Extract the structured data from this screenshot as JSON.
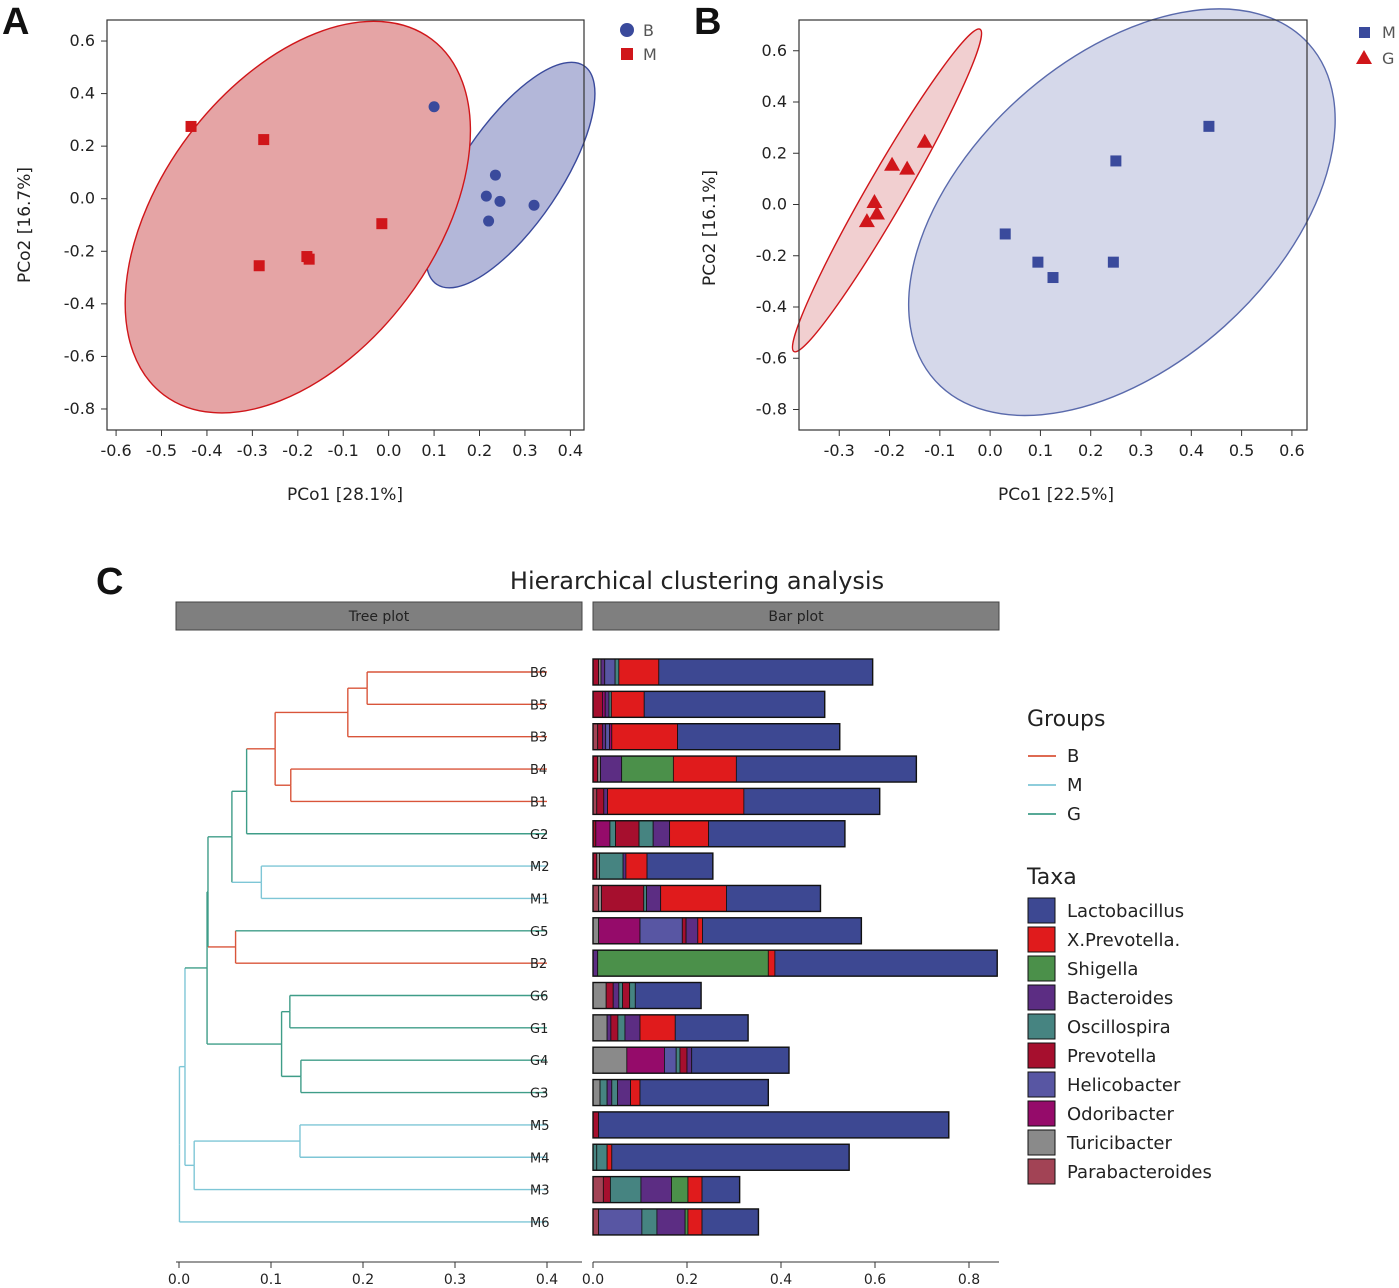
{
  "panels": {
    "A": {
      "letter": "A"
    },
    "B": {
      "letter": "B"
    },
    "C": {
      "letter": "C"
    }
  },
  "chart_data": [
    {
      "type": "scatter",
      "panel": "A",
      "xlabel": "PCo1 [28.1%]",
      "ylabel": "PCo2 [16.7%]",
      "xlim": [
        -0.62,
        0.43
      ],
      "ylim": [
        -0.88,
        0.68
      ],
      "xticks": [
        -0.6,
        -0.5,
        -0.4,
        -0.3,
        -0.2,
        -0.1,
        0.0,
        0.1,
        0.2,
        0.3,
        0.4
      ],
      "yticks": [
        0.6,
        0.4,
        0.2,
        0.0,
        -0.2,
        -0.4,
        -0.6,
        -0.8
      ],
      "xtick_labels": [
        "-0.6",
        "-0.5",
        "-0.4",
        "-0.3",
        "-0.2",
        "-0.1",
        "0.0",
        "0.1",
        "0.2",
        "0.3",
        "0.4"
      ],
      "ytick_labels": [
        "0.6",
        "0.4",
        "0.2",
        "0.0",
        "-0.2",
        "-0.4",
        "-0.6",
        "-0.8"
      ],
      "series": [
        {
          "name": "B",
          "marker": "circle",
          "color": "#3a4a9c",
          "fill": "#b3b7d9",
          "stroke": "#3a4a9c",
          "points": [
            [
              0.1,
              0.35
            ],
            [
              0.235,
              0.09
            ],
            [
              0.215,
              0.01
            ],
            [
              0.245,
              -0.01
            ],
            [
              0.32,
              -0.025
            ],
            [
              0.22,
              -0.085
            ]
          ],
          "ellipse": {
            "cx": 0.268,
            "cy": 0.09,
            "rx": 0.29,
            "ry": 0.11,
            "angle_deg": -56
          }
        },
        {
          "name": "M",
          "marker": "square",
          "color": "#d0161a",
          "fill": "#e5a4a5",
          "stroke": "#d0161a",
          "points": [
            [
              -0.435,
              0.275
            ],
            [
              -0.275,
              0.225
            ],
            [
              -0.015,
              -0.095
            ],
            [
              -0.18,
              -0.22
            ],
            [
              -0.175,
              -0.23
            ],
            [
              -0.285,
              -0.255
            ]
          ],
          "ellipse": {
            "cx": -0.2,
            "cy": -0.07,
            "rx": 0.49,
            "ry": 0.3,
            "angle_deg": -53
          }
        }
      ]
    },
    {
      "type": "scatter",
      "panel": "B",
      "xlabel": "PCo1 [22.5%]",
      "ylabel": "PCo2 [16.1%]",
      "xlim": [
        -0.38,
        0.63
      ],
      "ylim": [
        -0.88,
        0.72
      ],
      "xticks": [
        -0.3,
        -0.2,
        -0.1,
        0.0,
        0.1,
        0.2,
        0.3,
        0.4,
        0.5,
        0.6
      ],
      "yticks": [
        0.6,
        0.4,
        0.2,
        0.0,
        -0.2,
        -0.4,
        -0.6,
        -0.8
      ],
      "xtick_labels": [
        "-0.3",
        "-0.2",
        "-0.1",
        "0.0",
        "0.1",
        "0.2",
        "0.3",
        "0.4",
        "0.5",
        "0.6"
      ],
      "ytick_labels": [
        "0.6",
        "0.4",
        "0.2",
        "0.0",
        "-0.2",
        "-0.4",
        "-0.6",
        "-0.8"
      ],
      "series": [
        {
          "name": "M",
          "marker": "square",
          "color": "#3a4a9c",
          "fill": "#d5d8ea",
          "stroke": "#5a6aac",
          "points": [
            [
              0.435,
              0.305
            ],
            [
              0.25,
              0.17
            ],
            [
              0.03,
              -0.115
            ],
            [
              0.095,
              -0.225
            ],
            [
              0.125,
              -0.285
            ],
            [
              0.245,
              -0.225
            ]
          ],
          "ellipse": {
            "cx": 0.262,
            "cy": -0.03,
            "rx": 0.5,
            "ry": 0.305,
            "angle_deg": -42
          }
        },
        {
          "name": "G",
          "marker": "triangle",
          "color": "#d0161a",
          "fill": "#f1cfd0",
          "stroke": "#d0161a",
          "points": [
            [
              -0.13,
              0.245
            ],
            [
              -0.195,
              0.155
            ],
            [
              -0.165,
              0.14
            ],
            [
              -0.23,
              0.01
            ],
            [
              -0.225,
              -0.035
            ],
            [
              -0.245,
              -0.065
            ]
          ],
          "ellipse": {
            "cx": -0.205,
            "cy": 0.055,
            "rx": 0.37,
            "ry": 0.038,
            "angle_deg": -60
          }
        }
      ]
    },
    {
      "type": "bar",
      "panel": "C",
      "title": "Hierarchical clustering analysis",
      "strip_tree": "Tree plot",
      "strip_bar": "Bar plot",
      "orientation": "horizontal",
      "samples": [
        "B6",
        "B5",
        "B3",
        "B4",
        "B1",
        "G2",
        "M2",
        "M1",
        "G5",
        "B2",
        "G6",
        "G1",
        "G4",
        "G3",
        "M5",
        "M4",
        "M3",
        "M6"
      ],
      "leaf_group": [
        "B",
        "B",
        "B",
        "B",
        "B",
        "G",
        "M",
        "M",
        "G",
        "B",
        "G",
        "G",
        "G",
        "G",
        "M",
        "M",
        "M",
        "M"
      ],
      "tree_xticks": [
        0.0,
        0.1,
        0.2,
        0.3,
        0.4
      ],
      "tree_xtick_labels": [
        "0.0",
        "0.1",
        "0.2",
        "0.3",
        "0.4"
      ],
      "tree_xlim": [
        0.0,
        0.43
      ],
      "bar_xticks": [
        0.0,
        0.2,
        0.4,
        0.6,
        0.8
      ],
      "bar_xtick_labels": [
        "0.0",
        "0.2",
        "0.4",
        "0.6",
        "0.8"
      ],
      "bar_xlim": [
        0.0,
        0.86
      ],
      "groups_legend_title": "Groups",
      "groups": [
        {
          "name": "B",
          "color": "#d9553a"
        },
        {
          "name": "M",
          "color": "#7ec6d6"
        },
        {
          "name": "G",
          "color": "#3f9d88"
        }
      ],
      "taxa_legend_title": "Taxa",
      "taxa": [
        {
          "name": "Lactobacillus",
          "color": "#3d4892"
        },
        {
          "name": "X.Prevotella.",
          "color": "#e01b1c"
        },
        {
          "name": "Shigella",
          "color": "#4b904a"
        },
        {
          "name": "Bacteroides",
          "color": "#5c2d83"
        },
        {
          "name": "Oscillospira",
          "color": "#468481"
        },
        {
          "name": "Prevotella",
          "color": "#a60f2e"
        },
        {
          "name": "Helicobacter",
          "color": "#5856a3"
        },
        {
          "name": "Odoribacter",
          "color": "#950b6a"
        },
        {
          "name": "Turicibacter",
          "color": "#8a8a8a"
        },
        {
          "name": "Parabacteroides",
          "color": "#a24355"
        }
      ],
      "bars": {
        "B6": [
          [
            "Prevotella",
            0.012
          ],
          [
            "Turicibacter",
            0.005
          ],
          [
            "Bacteroides",
            0.008
          ],
          [
            "Helicobacter",
            0.022
          ],
          [
            "Oscillospira",
            0.008
          ],
          [
            "X.Prevotella.",
            0.085
          ],
          [
            "Lactobacillus",
            0.455
          ]
        ],
        "B5": [
          [
            "Prevotella",
            0.02
          ],
          [
            "Odoribacter",
            0.006
          ],
          [
            "Bacteroides",
            0.008
          ],
          [
            "Oscillospira",
            0.005
          ],
          [
            "X.Prevotella.",
            0.07
          ],
          [
            "Lactobacillus",
            0.384
          ]
        ],
        "B3": [
          [
            "Parabacteroides",
            0.01
          ],
          [
            "Prevotella",
            0.01
          ],
          [
            "Bacteroides",
            0.007
          ],
          [
            "Helicobacter",
            0.008
          ],
          [
            "Odoribacter",
            0.005
          ],
          [
            "X.Prevotella.",
            0.14
          ],
          [
            "Lactobacillus",
            0.345
          ]
        ],
        "B4": [
          [
            "Prevotella",
            0.01
          ],
          [
            "Turicibacter",
            0.006
          ],
          [
            "Bacteroides",
            0.045
          ],
          [
            "Shigella",
            0.11
          ],
          [
            "X.Prevotella.",
            0.134
          ],
          [
            "Lactobacillus",
            0.383
          ]
        ],
        "B1": [
          [
            "Parabacteroides",
            0.008
          ],
          [
            "Prevotella",
            0.015
          ],
          [
            "Bacteroides",
            0.008
          ],
          [
            "X.Prevotella.",
            0.29
          ],
          [
            "Lactobacillus",
            0.289
          ]
        ],
        "G2": [
          [
            "Prevotella",
            0.006
          ],
          [
            "Odoribacter",
            0.03
          ],
          [
            "Oscillospira",
            0.012
          ],
          [
            "Prevotella",
            0.05
          ],
          [
            "Oscillospira",
            0.03
          ],
          [
            "Bacteroides",
            0.035
          ],
          [
            "X.Prevotella.",
            0.083
          ],
          [
            "Lactobacillus",
            0.29
          ]
        ],
        "M2": [
          [
            "Prevotella",
            0.008
          ],
          [
            "Turicibacter",
            0.006
          ],
          [
            "Oscillospira",
            0.05
          ],
          [
            "Bacteroides",
            0.006
          ],
          [
            "X.Prevotella.",
            0.045
          ],
          [
            "Lactobacillus",
            0.14
          ]
        ],
        "M1": [
          [
            "Parabacteroides",
            0.012
          ],
          [
            "Turicibacter",
            0.006
          ],
          [
            "Prevotella",
            0.09
          ],
          [
            "Oscillospira",
            0.006
          ],
          [
            "Bacteroides",
            0.03
          ],
          [
            "X.Prevotella.",
            0.14
          ],
          [
            "Lactobacillus",
            0.2
          ]
        ],
        "G5": [
          [
            "Turicibacter",
            0.012
          ],
          [
            "Odoribacter",
            0.088
          ],
          [
            "Helicobacter",
            0.09
          ],
          [
            "Prevotella",
            0.008
          ],
          [
            "Bacteroides",
            0.025
          ],
          [
            "X.Prevotella.",
            0.01
          ],
          [
            "Lactobacillus",
            0.338
          ]
        ],
        "B2": [
          [
            "Bacteroides",
            0.01
          ],
          [
            "Shigella",
            0.363
          ],
          [
            "X.Prevotella.",
            0.014
          ],
          [
            "Lactobacillus",
            0.473
          ]
        ],
        "G6": [
          [
            "Turicibacter",
            0.028
          ],
          [
            "Prevotella",
            0.015
          ],
          [
            "Bacteroides",
            0.012
          ],
          [
            "Oscillospira",
            0.008
          ],
          [
            "Prevotella",
            0.015
          ],
          [
            "Oscillospira",
            0.012
          ],
          [
            "Lactobacillus",
            0.14
          ]
        ],
        "G1": [
          [
            "Turicibacter",
            0.03
          ],
          [
            "Bacteroides",
            0.008
          ],
          [
            "Prevotella",
            0.015
          ],
          [
            "Oscillospira",
            0.015
          ],
          [
            "Bacteroides",
            0.032
          ],
          [
            "X.Prevotella.",
            0.075
          ],
          [
            "Lactobacillus",
            0.155
          ]
        ],
        "G4": [
          [
            "Turicibacter",
            0.072
          ],
          [
            "Odoribacter",
            0.08
          ],
          [
            "Helicobacter",
            0.025
          ],
          [
            "Oscillospira",
            0.008
          ],
          [
            "Prevotella",
            0.015
          ],
          [
            "Bacteroides",
            0.01
          ],
          [
            "Lactobacillus",
            0.207
          ]
        ],
        "G3": [
          [
            "Turicibacter",
            0.015
          ],
          [
            "Oscillospira",
            0.015
          ],
          [
            "Bacteroides",
            0.01
          ],
          [
            "Oscillospira",
            0.012
          ],
          [
            "Bacteroides",
            0.028
          ],
          [
            "X.Prevotella.",
            0.02
          ],
          [
            "Lactobacillus",
            0.273
          ]
        ],
        "M5": [
          [
            "Prevotella",
            0.012
          ],
          [
            "Lactobacillus",
            0.745
          ]
        ],
        "M4": [
          [
            "Oscillospira",
            0.008
          ],
          [
            "Oscillospira",
            0.022
          ],
          [
            "X.Prevotella.",
            0.01
          ],
          [
            "Lactobacillus",
            0.505
          ]
        ],
        "M3": [
          [
            "Parabacteroides",
            0.022
          ],
          [
            "Prevotella",
            0.015
          ],
          [
            "Oscillospira",
            0.065
          ],
          [
            "Bacteroides",
            0.065
          ],
          [
            "Shigella",
            0.035
          ],
          [
            "X.Prevotella.",
            0.03
          ],
          [
            "Lactobacillus",
            0.08
          ]
        ],
        "M6": [
          [
            "Parabacteroides",
            0.012
          ],
          [
            "Helicobacter",
            0.092
          ],
          [
            "Oscillospira",
            0.032
          ],
          [
            "Bacteroides",
            0.06
          ],
          [
            "Shigella",
            0.006
          ],
          [
            "X.Prevotella.",
            0.03
          ],
          [
            "Lactobacillus",
            0.12
          ]
        ]
      }
    }
  ]
}
